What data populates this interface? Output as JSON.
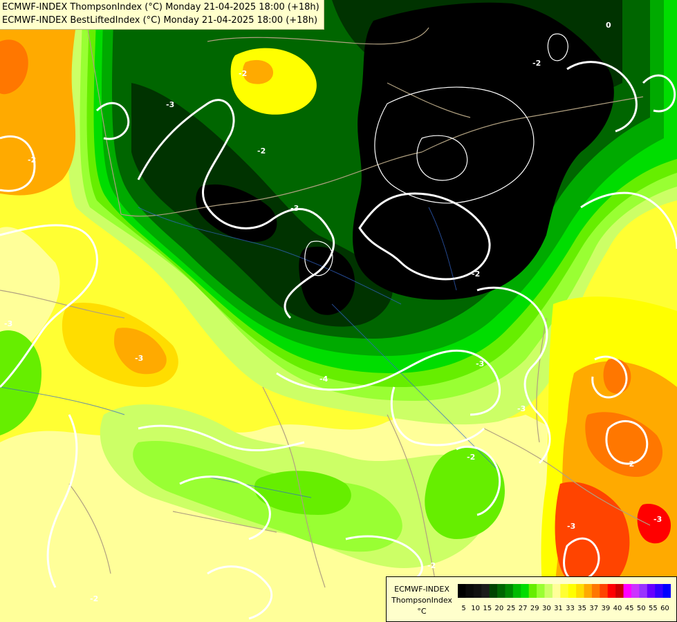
{
  "header": {
    "line1": "ECMWF-INDEX ThompsonIndex (°C) Monday 21-04-2025 18:00 (+18h)",
    "line2": "ECMWF-INDEX BestLiftedIndex (°C) Monday 21-04-2025 18:00 (+18h)"
  },
  "legend": {
    "title1": "ECMWF-INDEX",
    "title2": "ThompsonIndex",
    "unit": "°C",
    "colors": [
      "#000000",
      "#0a0a0a",
      "#111111",
      "#1b1b1b",
      "#004400",
      "#006600",
      "#008800",
      "#00bb00",
      "#00dd00",
      "#66ee00",
      "#99ff33",
      "#ccff66",
      "#ffff99",
      "#ffff33",
      "#ffff00",
      "#ffdd00",
      "#ffaa00",
      "#ff7700",
      "#ff4400",
      "#ff0000",
      "#cc0000",
      "#ff00ff",
      "#cc33ff",
      "#9933ff",
      "#6600ff",
      "#3300ff",
      "#0000ff"
    ],
    "ticks": [
      "5",
      "10",
      "15",
      "20",
      "25",
      "27",
      "29",
      "30",
      "31",
      "33",
      "35",
      "37",
      "39",
      "40",
      "45",
      "50",
      "55",
      "60"
    ]
  },
  "contour_labels": [
    {
      "text": "-3"
    },
    {
      "text": "-2"
    },
    {
      "text": "-3"
    },
    {
      "text": "-2"
    },
    {
      "text": "-4"
    },
    {
      "text": "-3"
    },
    {
      "text": "-3"
    },
    {
      "text": "-2"
    },
    {
      "text": "-2"
    },
    {
      "text": "-3"
    },
    {
      "text": "-2"
    },
    {
      "text": "-3"
    },
    {
      "text": "-2"
    },
    {
      "text": "-2"
    },
    {
      "text": "-2"
    },
    {
      "text": "0"
    },
    {
      "text": "-3"
    },
    {
      "text": "-3"
    },
    {
      "text": "-2"
    }
  ]
}
